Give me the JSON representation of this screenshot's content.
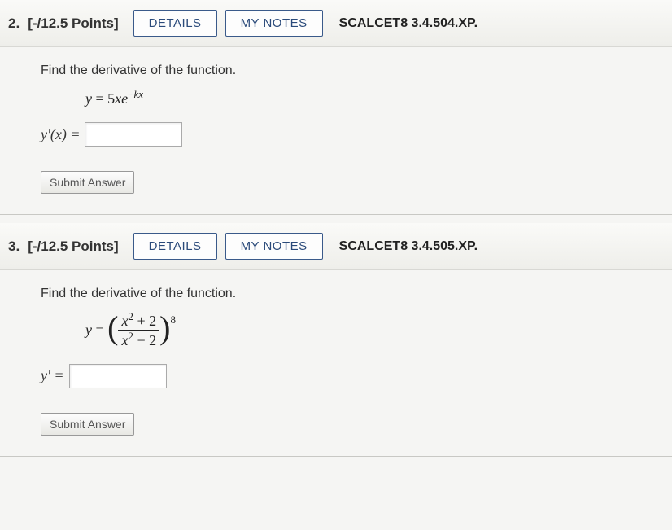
{
  "buttons": {
    "details": "DETAILS",
    "mynotes": "MY NOTES",
    "submit": "Submit Answer"
  },
  "q2": {
    "num": "2.",
    "points": "[-/12.5 Points]",
    "ref": "SCALCET8 3.4.504.XP.",
    "prompt": "Find the derivative of the function.",
    "lhs": "y'(x) ="
  },
  "q3": {
    "num": "3.",
    "points": "[-/12.5 Points]",
    "ref": "SCALCET8 3.4.505.XP.",
    "prompt": "Find the derivative of the function.",
    "lhs": "y' ="
  }
}
